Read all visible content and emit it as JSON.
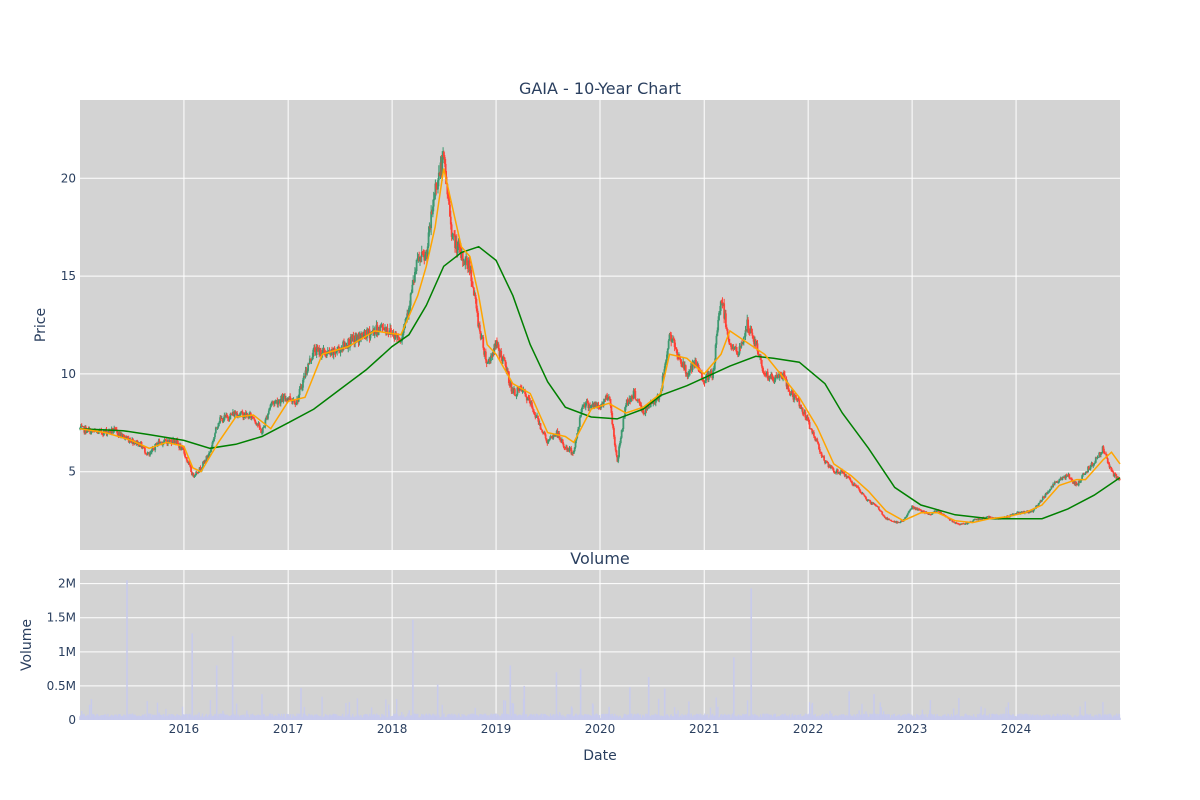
{
  "chart_data": [
    {
      "type": "candlestick",
      "title": "GAIA - 10-Year Chart",
      "ylabel": "Price",
      "ylim": [
        1.0,
        24.0
      ],
      "x_range": [
        "2015-01-01",
        "2024-12-31"
      ],
      "y_ticks": [
        5,
        10,
        15,
        20
      ],
      "x_ticks": [
        "2016",
        "2017",
        "2018",
        "2019",
        "2020",
        "2021",
        "2022",
        "2023",
        "2024"
      ],
      "grid": true,
      "background": "#d3d3d3",
      "colors": {
        "up": "#3d9970",
        "down": "#ff4136",
        "ma_short": "#ffa500",
        "ma_long": "#008000",
        "grid": "#ffffff"
      },
      "close_trend": [
        [
          "2015-01-01",
          7.2
        ],
        [
          "2015-03-01",
          7.0
        ],
        [
          "2015-05-01",
          7.1
        ],
        [
          "2015-06-01",
          6.8
        ],
        [
          "2015-08-01",
          6.4
        ],
        [
          "2015-09-01",
          5.8
        ],
        [
          "2015-10-01",
          6.5
        ],
        [
          "2015-12-01",
          6.6
        ],
        [
          "2016-01-01",
          6.0
        ],
        [
          "2016-02-01",
          4.8
        ],
        [
          "2016-03-01",
          5.2
        ],
        [
          "2016-04-01",
          6.0
        ],
        [
          "2016-05-01",
          7.6
        ],
        [
          "2016-07-01",
          8.0
        ],
        [
          "2016-09-01",
          7.8
        ],
        [
          "2016-10-01",
          7.0
        ],
        [
          "2016-11-01",
          8.5
        ],
        [
          "2017-01-01",
          8.8
        ],
        [
          "2017-02-01",
          8.6
        ],
        [
          "2017-03-01",
          10.0
        ],
        [
          "2017-04-01",
          11.2
        ],
        [
          "2017-06-01",
          11.0
        ],
        [
          "2017-08-01",
          11.6
        ],
        [
          "2017-10-01",
          12.0
        ],
        [
          "2017-12-01",
          12.4
        ],
        [
          "2018-02-01",
          11.8
        ],
        [
          "2018-03-01",
          13.5
        ],
        [
          "2018-04-01",
          15.8
        ],
        [
          "2018-05-01",
          16.0
        ],
        [
          "2018-06-01",
          19.5
        ],
        [
          "2018-07-01",
          21.0
        ],
        [
          "2018-08-01",
          17.0
        ],
        [
          "2018-09-01",
          16.0
        ],
        [
          "2018-10-01",
          15.5
        ],
        [
          "2018-11-01",
          12.5
        ],
        [
          "2018-12-01",
          10.5
        ],
        [
          "2019-01-01",
          11.5
        ],
        [
          "2019-02-01",
          10.5
        ],
        [
          "2019-03-01",
          9.0
        ],
        [
          "2019-04-01",
          9.2
        ],
        [
          "2019-05-01",
          8.5
        ],
        [
          "2019-06-01",
          7.5
        ],
        [
          "2019-07-01",
          6.5
        ],
        [
          "2019-08-01",
          7.0
        ],
        [
          "2019-09-01",
          6.2
        ],
        [
          "2019-10-01",
          6.0
        ],
        [
          "2019-11-01",
          8.5
        ],
        [
          "2020-01-01",
          8.3
        ],
        [
          "2020-02-01",
          9.0
        ],
        [
          "2020-03-01",
          5.5
        ],
        [
          "2020-04-01",
          8.5
        ],
        [
          "2020-05-01",
          9.0
        ],
        [
          "2020-06-01",
          8.0
        ],
        [
          "2020-07-01",
          8.5
        ],
        [
          "2020-08-01",
          9.0
        ],
        [
          "2020-09-01",
          12.0
        ],
        [
          "2020-10-01",
          11.0
        ],
        [
          "2020-11-01",
          10.0
        ],
        [
          "2020-12-01",
          10.5
        ],
        [
          "2021-01-01",
          9.7
        ],
        [
          "2021-02-01",
          10.0
        ],
        [
          "2021-03-01",
          14.0
        ],
        [
          "2021-04-01",
          11.5
        ],
        [
          "2021-05-01",
          11.0
        ],
        [
          "2021-06-01",
          12.5
        ],
        [
          "2021-07-01",
          11.5
        ],
        [
          "2021-08-01",
          10.0
        ],
        [
          "2021-09-01",
          9.7
        ],
        [
          "2021-10-01",
          10.0
        ],
        [
          "2021-11-01",
          9.0
        ],
        [
          "2021-12-01",
          8.5
        ],
        [
          "2022-01-01",
          7.5
        ],
        [
          "2022-02-01",
          6.5
        ],
        [
          "2022-03-01",
          5.5
        ],
        [
          "2022-04-01",
          5.0
        ],
        [
          "2022-05-01",
          5.0
        ],
        [
          "2022-06-01",
          4.5
        ],
        [
          "2022-07-01",
          4.0
        ],
        [
          "2022-08-01",
          3.5
        ],
        [
          "2022-09-01",
          3.2
        ],
        [
          "2022-10-01",
          2.6
        ],
        [
          "2022-11-01",
          2.4
        ],
        [
          "2022-12-01",
          2.5
        ],
        [
          "2023-01-01",
          3.2
        ],
        [
          "2023-02-01",
          3.0
        ],
        [
          "2023-03-01",
          2.8
        ],
        [
          "2023-04-01",
          3.0
        ],
        [
          "2023-05-01",
          2.7
        ],
        [
          "2023-06-01",
          2.4
        ],
        [
          "2023-07-01",
          2.3
        ],
        [
          "2023-08-01",
          2.5
        ],
        [
          "2023-09-01",
          2.6
        ],
        [
          "2023-10-01",
          2.7
        ],
        [
          "2023-11-01",
          2.6
        ],
        [
          "2023-12-01",
          2.7
        ],
        [
          "2024-01-01",
          2.9
        ],
        [
          "2024-02-01",
          2.9
        ],
        [
          "2024-03-01",
          3.0
        ],
        [
          "2024-04-01",
          3.6
        ],
        [
          "2024-05-01",
          4.2
        ],
        [
          "2024-06-01",
          4.6
        ],
        [
          "2024-07-01",
          4.8
        ],
        [
          "2024-08-01",
          4.3
        ],
        [
          "2024-09-01",
          5.0
        ],
        [
          "2024-10-01",
          5.5
        ],
        [
          "2024-11-01",
          6.2
        ],
        [
          "2024-12-01",
          5.0
        ],
        [
          "2024-12-31",
          4.5
        ]
      ],
      "ma_short": [
        [
          "2015-01-01",
          7.2
        ],
        [
          "2015-04-01",
          7.0
        ],
        [
          "2015-07-01",
          6.6
        ],
        [
          "2015-09-01",
          6.2
        ],
        [
          "2015-11-01",
          6.5
        ],
        [
          "2016-01-01",
          6.3
        ],
        [
          "2016-02-01",
          5.2
        ],
        [
          "2016-03-01",
          5.0
        ],
        [
          "2016-05-01",
          6.5
        ],
        [
          "2016-07-01",
          7.8
        ],
        [
          "2016-09-01",
          7.9
        ],
        [
          "2016-11-01",
          7.2
        ],
        [
          "2017-01-01",
          8.6
        ],
        [
          "2017-03-01",
          8.8
        ],
        [
          "2017-05-01",
          11.0
        ],
        [
          "2017-08-01",
          11.4
        ],
        [
          "2017-11-01",
          12.2
        ],
        [
          "2018-02-01",
          12.0
        ],
        [
          "2018-04-01",
          14.0
        ],
        [
          "2018-05-01",
          15.5
        ],
        [
          "2018-06-01",
          17.5
        ],
        [
          "2018-07-01",
          20.5
        ],
        [
          "2018-08-01",
          18.5
        ],
        [
          "2018-09-01",
          16.5
        ],
        [
          "2018-10-01",
          16.0
        ],
        [
          "2018-11-01",
          14.0
        ],
        [
          "2018-12-01",
          11.5
        ],
        [
          "2019-01-01",
          11.0
        ],
        [
          "2019-03-01",
          9.5
        ],
        [
          "2019-05-01",
          9.0
        ],
        [
          "2019-07-01",
          7.0
        ],
        [
          "2019-09-01",
          6.8
        ],
        [
          "2019-10-01",
          6.5
        ],
        [
          "2019-12-01",
          8.2
        ],
        [
          "2020-02-01",
          8.5
        ],
        [
          "2020-04-01",
          8.0
        ],
        [
          "2020-06-01",
          8.3
        ],
        [
          "2020-08-01",
          9.0
        ],
        [
          "2020-09-01",
          11.0
        ],
        [
          "2020-11-01",
          10.8
        ],
        [
          "2021-01-01",
          10.0
        ],
        [
          "2021-03-01",
          11.0
        ],
        [
          "2021-04-01",
          12.2
        ],
        [
          "2021-06-01",
          11.6
        ],
        [
          "2021-08-01",
          11.0
        ],
        [
          "2021-10-01",
          9.9
        ],
        [
          "2021-12-01",
          8.8
        ],
        [
          "2022-02-01",
          7.3
        ],
        [
          "2022-04-01",
          5.4
        ],
        [
          "2022-06-01",
          4.8
        ],
        [
          "2022-08-01",
          4.0
        ],
        [
          "2022-10-01",
          3.0
        ],
        [
          "2022-12-01",
          2.5
        ],
        [
          "2023-02-01",
          2.9
        ],
        [
          "2023-04-01",
          2.9
        ],
        [
          "2023-06-01",
          2.5
        ],
        [
          "2023-08-01",
          2.4
        ],
        [
          "2023-10-01",
          2.6
        ],
        [
          "2023-12-01",
          2.7
        ],
        [
          "2024-02-01",
          2.9
        ],
        [
          "2024-04-01",
          3.3
        ],
        [
          "2024-06-01",
          4.3
        ],
        [
          "2024-08-01",
          4.6
        ],
        [
          "2024-09-01",
          4.6
        ],
        [
          "2024-11-01",
          5.6
        ],
        [
          "2024-12-01",
          6.0
        ],
        [
          "2024-12-31",
          5.4
        ]
      ],
      "ma_long": [
        [
          "2015-01-01",
          7.2
        ],
        [
          "2015-06-01",
          7.1
        ],
        [
          "2015-09-01",
          6.9
        ],
        [
          "2016-01-01",
          6.6
        ],
        [
          "2016-04-01",
          6.2
        ],
        [
          "2016-07-01",
          6.4
        ],
        [
          "2016-10-01",
          6.8
        ],
        [
          "2017-01-01",
          7.5
        ],
        [
          "2017-04-01",
          8.2
        ],
        [
          "2017-07-01",
          9.2
        ],
        [
          "2017-10-01",
          10.2
        ],
        [
          "2018-01-01",
          11.4
        ],
        [
          "2018-03-01",
          12.0
        ],
        [
          "2018-05-01",
          13.5
        ],
        [
          "2018-07-01",
          15.5
        ],
        [
          "2018-09-01",
          16.2
        ],
        [
          "2018-11-01",
          16.5
        ],
        [
          "2019-01-01",
          15.8
        ],
        [
          "2019-03-01",
          14.0
        ],
        [
          "2019-05-01",
          11.5
        ],
        [
          "2019-07-01",
          9.6
        ],
        [
          "2019-09-01",
          8.3
        ],
        [
          "2019-12-01",
          7.8
        ],
        [
          "2020-03-01",
          7.7
        ],
        [
          "2020-06-01",
          8.2
        ],
        [
          "2020-08-01",
          8.9
        ],
        [
          "2020-11-01",
          9.4
        ],
        [
          "2021-01-01",
          9.8
        ],
        [
          "2021-04-01",
          10.4
        ],
        [
          "2021-07-01",
          10.9
        ],
        [
          "2021-09-01",
          10.8
        ],
        [
          "2021-12-01",
          10.6
        ],
        [
          "2022-03-01",
          9.5
        ],
        [
          "2022-05-01",
          8.0
        ],
        [
          "2022-08-01",
          6.2
        ],
        [
          "2022-11-01",
          4.2
        ],
        [
          "2023-02-01",
          3.3
        ],
        [
          "2023-06-01",
          2.8
        ],
        [
          "2023-10-01",
          2.6
        ],
        [
          "2024-01-01",
          2.6
        ],
        [
          "2024-04-01",
          2.6
        ],
        [
          "2024-07-01",
          3.1
        ],
        [
          "2024-10-01",
          3.8
        ],
        [
          "2024-12-31",
          4.7
        ]
      ]
    },
    {
      "type": "bar",
      "title": "Volume",
      "xlabel": "Date",
      "ylabel": "Volume",
      "ylim": [
        0,
        2200000
      ],
      "y_ticks": [
        0,
        500000,
        1000000,
        1500000,
        2000000
      ],
      "y_tick_labels": [
        "0",
        "0.5M",
        "1M",
        "1.5M",
        "2M"
      ],
      "x_ticks": [
        "2016",
        "2017",
        "2018",
        "2019",
        "2020",
        "2021",
        "2022",
        "2023",
        "2024"
      ],
      "grid": true,
      "background": "#d3d3d3",
      "bar_color": "#c8cbec",
      "typical_volume": 60000,
      "spikes": [
        [
          "2015-06-15",
          2050000
        ],
        [
          "2016-01-30",
          1270000
        ],
        [
          "2016-04-25",
          800000
        ],
        [
          "2016-06-20",
          1230000
        ],
        [
          "2016-10-01",
          380000
        ],
        [
          "2017-02-15",
          470000
        ],
        [
          "2018-03-15",
          1470000
        ],
        [
          "2018-06-10",
          520000
        ],
        [
          "2019-02-20",
          800000
        ],
        [
          "2019-04-10",
          500000
        ],
        [
          "2019-08-01",
          700000
        ],
        [
          "2019-10-25",
          750000
        ],
        [
          "2020-04-15",
          480000
        ],
        [
          "2020-06-20",
          630000
        ],
        [
          "2020-08-15",
          460000
        ],
        [
          "2021-04-15",
          920000
        ],
        [
          "2021-06-15",
          1930000
        ],
        [
          "2022-05-25",
          420000
        ],
        [
          "2022-08-20",
          380000
        ]
      ]
    }
  ]
}
